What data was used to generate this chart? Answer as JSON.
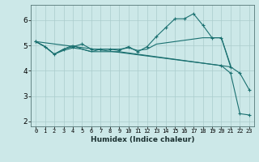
{
  "title": "",
  "xlabel": "Humidex (Indice chaleur)",
  "ylabel": "",
  "xlim": [
    -0.5,
    23.5
  ],
  "ylim": [
    1.8,
    6.6
  ],
  "background_color": "#cce8e8",
  "grid_color": "#aacccc",
  "line_color": "#1a7070",
  "xticks": [
    0,
    1,
    2,
    3,
    4,
    5,
    6,
    7,
    8,
    9,
    10,
    11,
    12,
    13,
    14,
    15,
    16,
    17,
    18,
    19,
    20,
    21,
    22,
    23
  ],
  "yticks": [
    2,
    3,
    4,
    5,
    6
  ],
  "series": [
    {
      "x": [
        0,
        1,
        2,
        3,
        4,
        5,
        6,
        7,
        8,
        9,
        10,
        11,
        12,
        13,
        14,
        15,
        16,
        17,
        18,
        19,
        20,
        21,
        22,
        23
      ],
      "y": [
        5.15,
        4.95,
        4.65,
        4.85,
        4.95,
        5.05,
        4.85,
        4.85,
        4.85,
        4.8,
        4.95,
        4.75,
        4.95,
        5.35,
        5.7,
        6.05,
        6.05,
        6.25,
        5.8,
        5.3,
        5.3,
        4.15,
        3.9,
        3.25
      ],
      "marker": "+"
    },
    {
      "x": [
        0,
        1,
        2,
        3,
        4,
        5,
        6,
        7,
        8,
        9,
        10,
        11,
        12,
        13,
        14,
        15,
        16,
        17,
        18,
        19,
        20,
        21
      ],
      "y": [
        5.15,
        4.95,
        4.65,
        4.85,
        5.0,
        4.85,
        4.75,
        4.85,
        4.85,
        4.85,
        4.9,
        4.8,
        4.85,
        5.05,
        5.1,
        5.15,
        5.2,
        5.25,
        5.3,
        5.3,
        5.3,
        4.2
      ],
      "marker": null
    },
    {
      "x": [
        0,
        1,
        2,
        3,
        4,
        5,
        6,
        7,
        8,
        9,
        10,
        11,
        12,
        13,
        14,
        15,
        16,
        17,
        18,
        19,
        20,
        21
      ],
      "y": [
        5.15,
        4.95,
        4.65,
        4.8,
        4.9,
        4.85,
        4.75,
        4.75,
        4.75,
        4.75,
        4.7,
        4.65,
        4.6,
        4.55,
        4.5,
        4.45,
        4.4,
        4.35,
        4.3,
        4.25,
        4.2,
        4.15
      ],
      "marker": null
    },
    {
      "x": [
        0,
        20,
        21,
        22,
        23
      ],
      "y": [
        5.15,
        4.2,
        3.9,
        2.3,
        2.25
      ],
      "marker": "+"
    }
  ]
}
